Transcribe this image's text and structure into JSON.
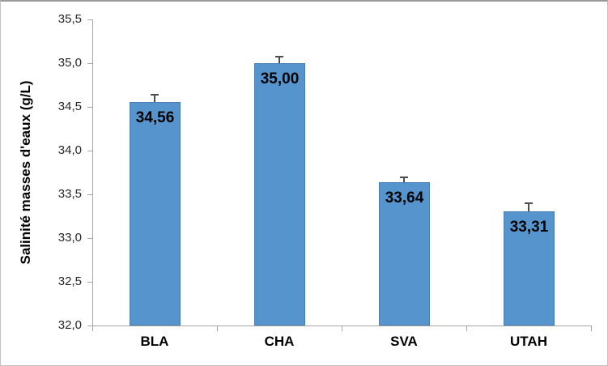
{
  "chart_data": {
    "type": "bar",
    "title": "",
    "categories": [
      "BLA",
      "CHA",
      "SVA",
      "UTAH"
    ],
    "values": [
      34.56,
      35.0,
      33.64,
      33.31
    ],
    "value_labels": [
      "34,56",
      "35,00",
      "33,64",
      "33,31"
    ],
    "errors_plus": [
      0.08,
      0.07,
      0.06,
      0.09
    ],
    "ylabel": "Salinité masses d'eaux (g/L)",
    "xlabel": "",
    "ylim": [
      32.0,
      35.5
    ],
    "ytick_step": 0.5,
    "ytick_labels": [
      "32,0",
      "32,5",
      "33,0",
      "33,5",
      "34,0",
      "34,5",
      "35,0",
      "35,5"
    ],
    "decimal_separator": ",",
    "grid": false,
    "legend": "none",
    "colors": {
      "bar_fill": "#5694CE",
      "error_bar": "#4d4d4d",
      "axis_line": "#a6a6a6",
      "text": "#000000",
      "tick_text": "#262626",
      "frame_border": "#9a9a9a",
      "background": "#ffffff"
    }
  }
}
